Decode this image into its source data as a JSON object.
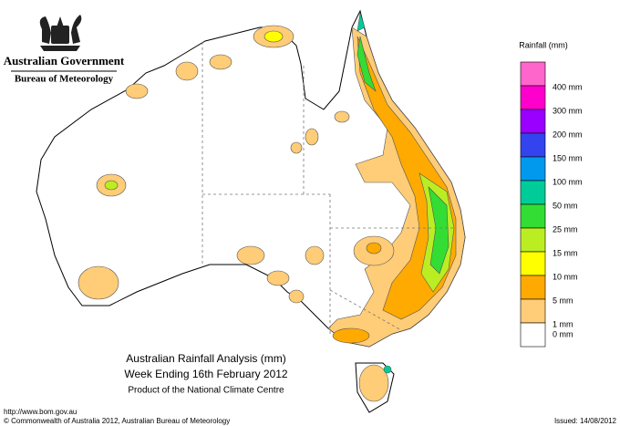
{
  "header": {
    "government": "Australian Government",
    "bureau": "Bureau of Meteorology"
  },
  "title": {
    "line1": "Australian Rainfall Analysis (mm)",
    "line2": "Week Ending 16th February 2012",
    "line3": "Product of the National Climate Centre"
  },
  "legend": {
    "title": "Rainfall (mm)",
    "items": [
      {
        "label": "400 mm",
        "color": "#ff66cc"
      },
      {
        "label": "300 mm",
        "color": "#ff00cc"
      },
      {
        "label": "200 mm",
        "color": "#9900ff"
      },
      {
        "label": "150 mm",
        "color": "#3344ee"
      },
      {
        "label": "100 mm",
        "color": "#0099ee"
      },
      {
        "label": "50 mm",
        "color": "#00cc99"
      },
      {
        "label": "25 mm",
        "color": "#33dd33"
      },
      {
        "label": "15 mm",
        "color": "#bbee22"
      },
      {
        "label": "10 mm",
        "color": "#ffff00"
      },
      {
        "label": "5 mm",
        "color": "#ffaa00"
      },
      {
        "label": "1 mm",
        "color": "#ffcc77"
      },
      {
        "label": "0 mm",
        "color": "#ffffff"
      }
    ]
  },
  "footer": {
    "url": "http://www.bom.gov.au",
    "copyright": "© Commonwealth of Australia 2012, Australian Bureau of Meteorology",
    "issued": "Issued: 14/08/2012"
  }
}
